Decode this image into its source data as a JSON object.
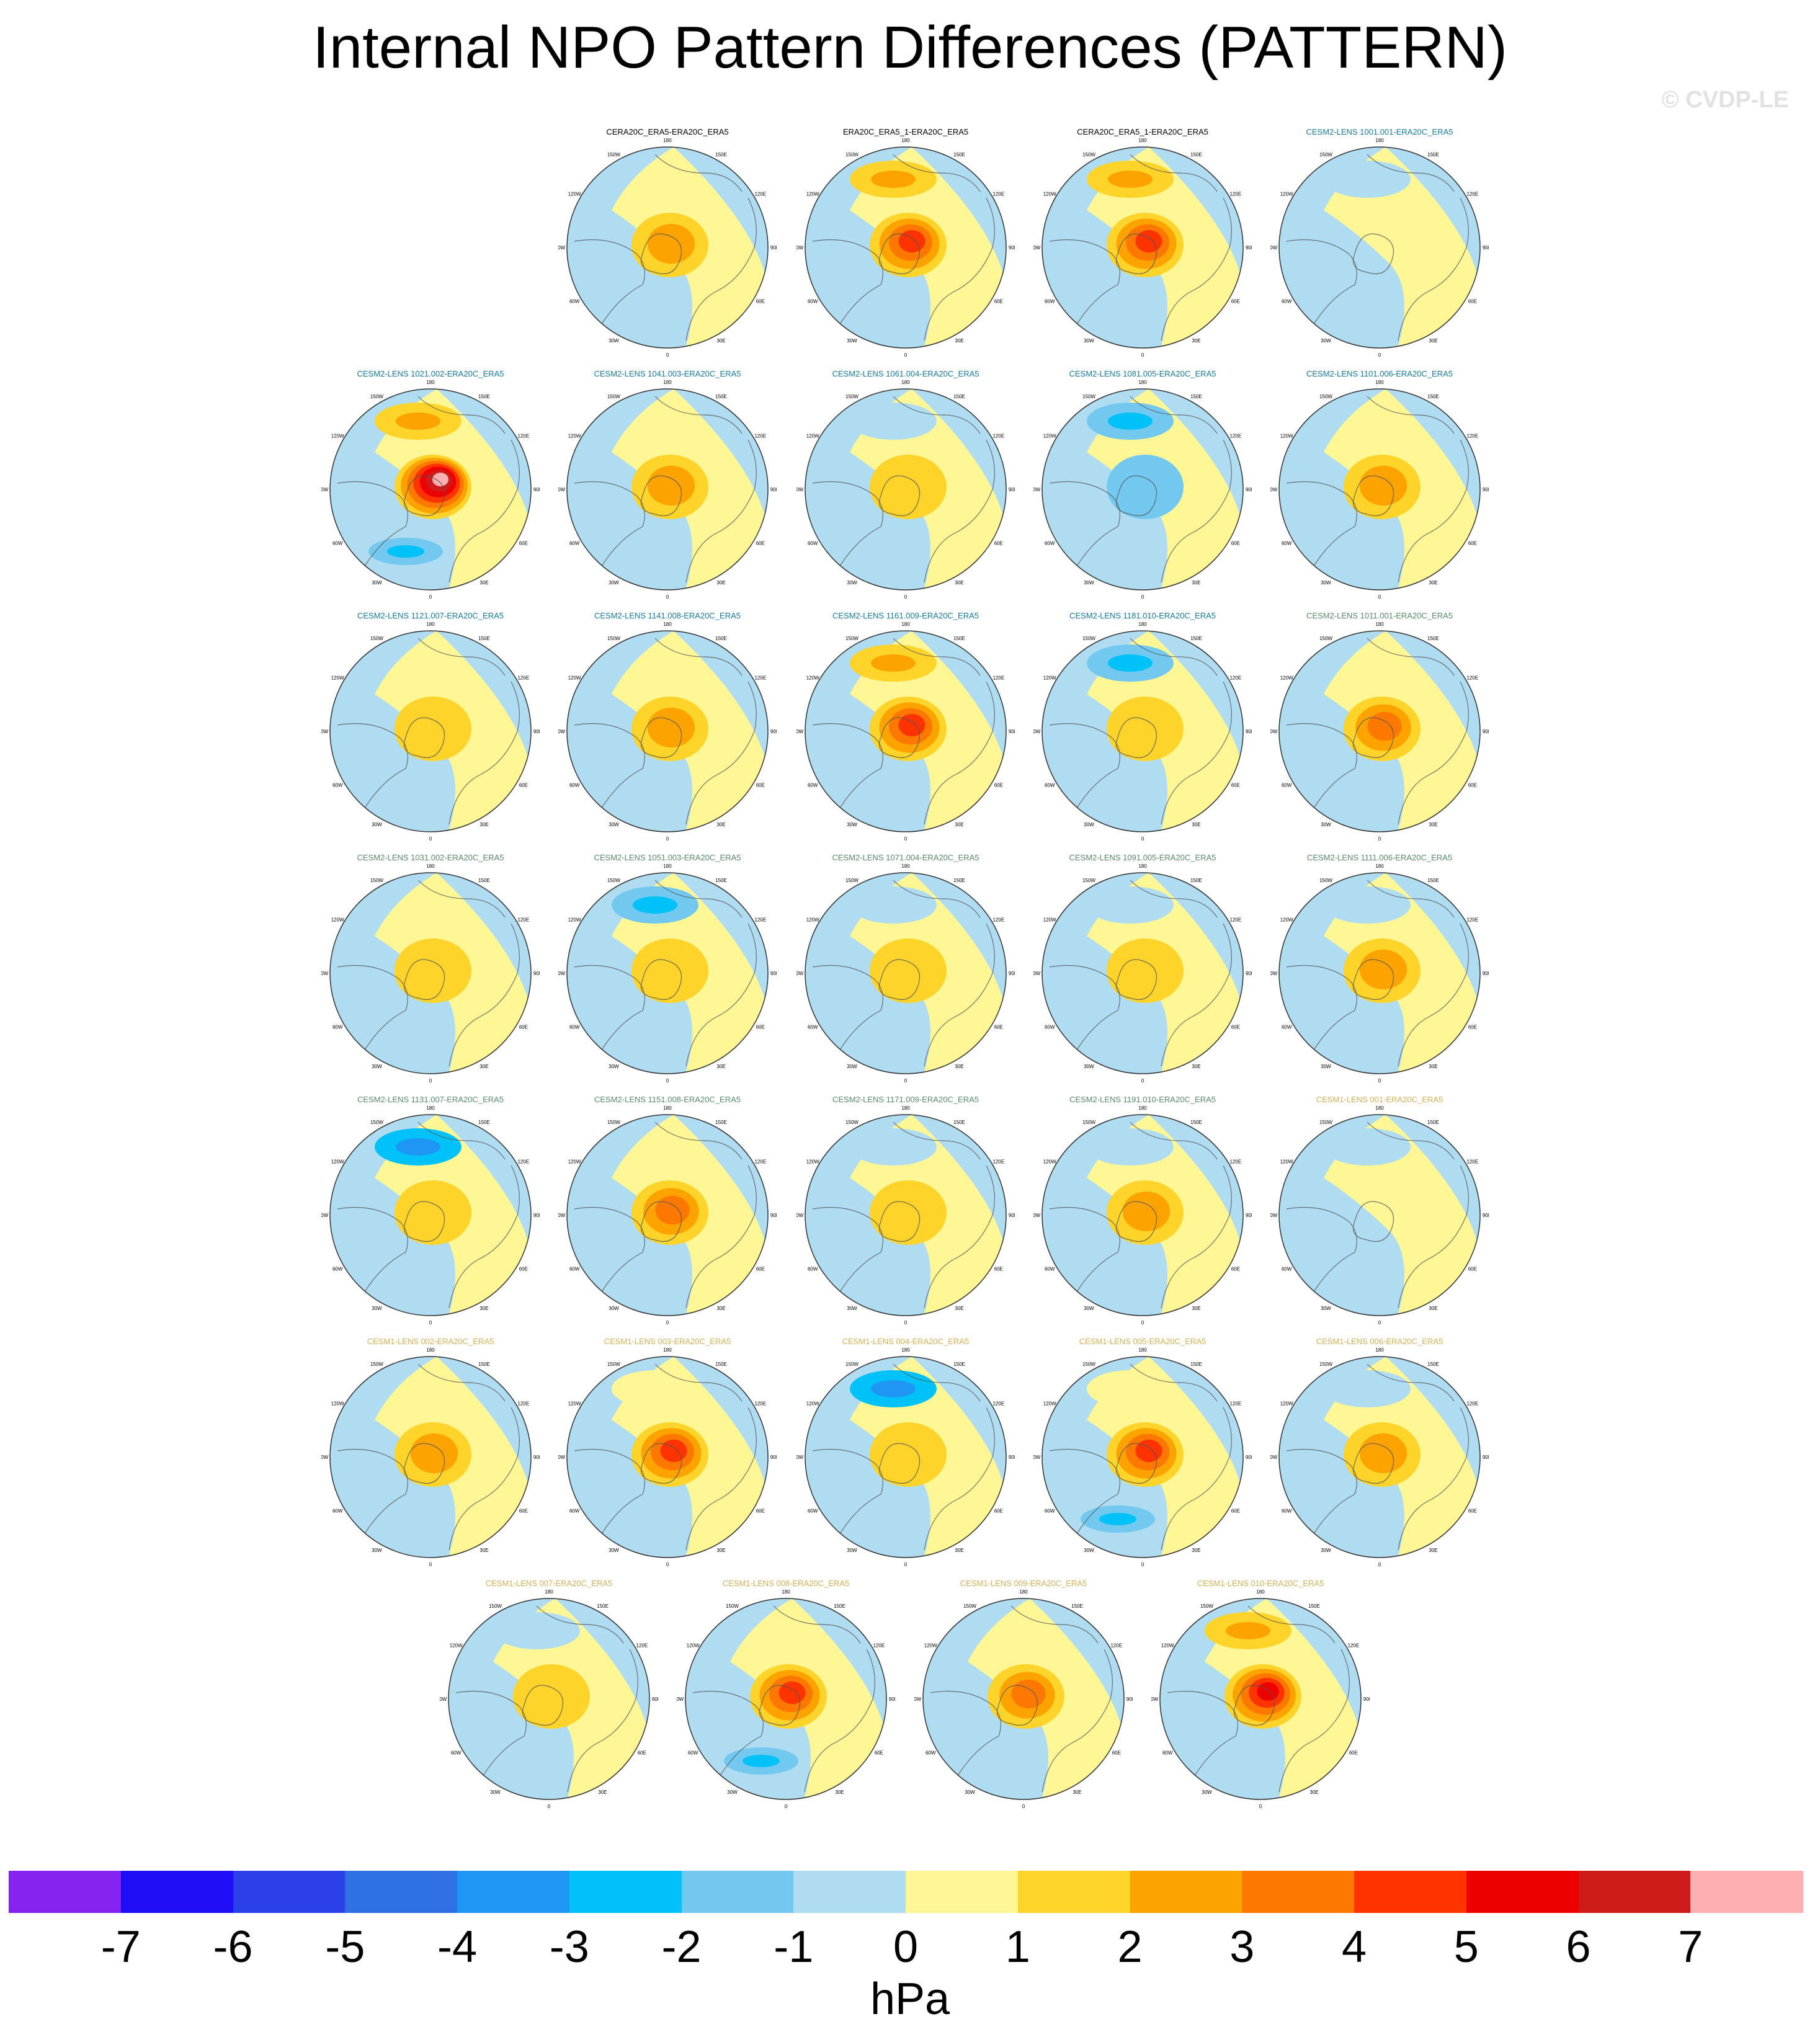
{
  "title": "Internal NPO Pattern Differences (PATTERN)",
  "credit": "© CVDP-LE",
  "map": {
    "projection": "north-polar-stereographic",
    "field": "NPO pattern difference",
    "lon_labels": {
      "top": "180",
      "upper_left": "150W",
      "upper_right": "150E",
      "left_upper": "120W",
      "right_upper": "120E",
      "left": "90W",
      "right": "90E",
      "left_lower": "60W",
      "right_lower": "60E",
      "lower_left": "30W",
      "lower_right": "30E",
      "bottom": "0"
    }
  },
  "panels": [
    {
      "title": "CERA20C_ERA5-ERA20C_ERA5",
      "title_color": "#000000",
      "center": 2,
      "pac": 0,
      "sub": -1,
      "atl": -1
    },
    {
      "title": "ERA20C_ERA5_1-ERA20C_ERA5",
      "title_color": "#000000",
      "center": 4,
      "pac": 2,
      "sub": -1,
      "atl": -1
    },
    {
      "title": "CERA20C_ERA5_1-ERA20C_ERA5",
      "title_color": "#000000",
      "center": 4,
      "pac": 2,
      "sub": -1,
      "atl": -1
    },
    {
      "title": "CESM2-LENS 1001.001-ERA20C_ERA5",
      "title_color": "#1a7a9a",
      "center": 0,
      "pac": -1,
      "sub": 0,
      "atl": 0
    },
    {
      "title": "CESM2-LENS 1021.002-ERA20C_ERA5",
      "title_color": "#1a7a9a",
      "center": 7,
      "pac": 2,
      "sub": -2,
      "atl": -1
    },
    {
      "title": "CESM2-LENS 1041.003-ERA20C_ERA5",
      "title_color": "#1a7a9a",
      "center": 2,
      "pac": 0,
      "sub": -1,
      "atl": -1
    },
    {
      "title": "CESM2-LENS 1061.004-ERA20C_ERA5",
      "title_color": "#1a7a9a",
      "center": 1,
      "pac": -1,
      "sub": 0,
      "atl": -1
    },
    {
      "title": "CESM2-LENS 1081.005-ERA20C_ERA5",
      "title_color": "#1a7a9a",
      "center": -1,
      "pac": -2,
      "sub": 0,
      "atl": -1
    },
    {
      "title": "CESM2-LENS 1101.006-ERA20C_ERA5",
      "title_color": "#1a7a9a",
      "center": 2,
      "pac": 0,
      "sub": -1,
      "atl": -1
    },
    {
      "title": "CESM2-LENS 1121.007-ERA20C_ERA5",
      "title_color": "#1a7a9a",
      "center": 1,
      "pac": 0,
      "sub": -1,
      "atl": -1
    },
    {
      "title": "CESM2-LENS 1141.008-ERA20C_ERA5",
      "title_color": "#1a7a9a",
      "center": 2,
      "pac": 0,
      "sub": -1,
      "atl": -1
    },
    {
      "title": "CESM2-LENS 1161.009-ERA20C_ERA5",
      "title_color": "#1a7a9a",
      "center": 4,
      "pac": 2,
      "sub": -1,
      "atl": -1
    },
    {
      "title": "CESM2-LENS 1181.010-ERA20C_ERA5",
      "title_color": "#1a7a9a",
      "center": 1,
      "pac": -2,
      "sub": -1,
      "atl": -1
    },
    {
      "title": "CESM2-LENS 1011.001-ERA20C_ERA5",
      "title_color": "#5a8a6a",
      "center": 3,
      "pac": 0,
      "sub": -1,
      "atl": -1
    },
    {
      "title": "CESM2-LENS 1031.002-ERA20C_ERA5",
      "title_color": "#5a8a6a",
      "center": 1,
      "pac": 0,
      "sub": -1,
      "atl": -1
    },
    {
      "title": "CESM2-LENS 1051.003-ERA20C_ERA5",
      "title_color": "#5a8a6a",
      "center": 1,
      "pac": -2,
      "sub": 0,
      "atl": -1
    },
    {
      "title": "CESM2-LENS 1071.004-ERA20C_ERA5",
      "title_color": "#5a8a6a",
      "center": 1,
      "pac": -1,
      "sub": -1,
      "atl": -1
    },
    {
      "title": "CESM2-LENS 1091.005-ERA20C_ERA5",
      "title_color": "#5a8a6a",
      "center": 1,
      "pac": -1,
      "sub": 0,
      "atl": -1
    },
    {
      "title": "CESM2-LENS 1111.006-ERA20C_ERA5",
      "title_color": "#5a8a6a",
      "center": 2,
      "pac": -1,
      "sub": -1,
      "atl": -1
    },
    {
      "title": "CESM2-LENS 1131.007-ERA20C_ERA5",
      "title_color": "#5a8a6a",
      "center": 1,
      "pac": -3,
      "sub": 0,
      "atl": -1
    },
    {
      "title": "CESM2-LENS 1151.008-ERA20C_ERA5",
      "title_color": "#5a8a6a",
      "center": 3,
      "pac": 0,
      "sub": -1,
      "atl": -1
    },
    {
      "title": "CESM2-LENS 1171.009-ERA20C_ERA5",
      "title_color": "#5a8a6a",
      "center": 1,
      "pac": -1,
      "sub": -1,
      "atl": -1
    },
    {
      "title": "CESM2-LENS 1191.010-ERA20C_ERA5",
      "title_color": "#5a8a6a",
      "center": 2,
      "pac": -1,
      "sub": -1,
      "atl": -1
    },
    {
      "title": "CESM1-LENS 001-ERA20C_ERA5",
      "title_color": "#d2b15a",
      "center": 0,
      "pac": -1,
      "sub": -1,
      "atl": 0
    },
    {
      "title": "CESM1-LENS 002-ERA20C_ERA5",
      "title_color": "#d2b15a",
      "center": 2,
      "pac": 0,
      "sub": -1,
      "atl": -1
    },
    {
      "title": "CESM1-LENS 003-ERA20C_ERA5",
      "title_color": "#d2b15a",
      "center": 4,
      "pac": 1,
      "sub": -1,
      "atl": -1
    },
    {
      "title": "CESM1-LENS 004-ERA20C_ERA5",
      "title_color": "#d2b15a",
      "center": 1,
      "pac": -3,
      "sub": 0,
      "atl": -1
    },
    {
      "title": "CESM1-LENS 005-ERA20C_ERA5",
      "title_color": "#d2b15a",
      "center": 4,
      "pac": 1,
      "sub": -2,
      "atl": -1
    },
    {
      "title": "CESM1-LENS 006-ERA20C_ERA5",
      "title_color": "#d2b15a",
      "center": 2,
      "pac": -1,
      "sub": -1,
      "atl": 0
    },
    {
      "title": "CESM1-LENS 007-ERA20C_ERA5",
      "title_color": "#d2b15a",
      "center": 1,
      "pac": -1,
      "sub": 0,
      "atl": -1
    },
    {
      "title": "CESM1-LENS 008-ERA20C_ERA5",
      "title_color": "#d2b15a",
      "center": 4,
      "pac": 0,
      "sub": -2,
      "atl": -1
    },
    {
      "title": "CESM1-LENS 009-ERA20C_ERA5",
      "title_color": "#d2b15a",
      "center": 3,
      "pac": 0,
      "sub": -1,
      "atl": -1
    },
    {
      "title": "CESM1-LENS 010-ERA20C_ERA5",
      "title_color": "#d2b15a",
      "center": 5,
      "pac": 2,
      "sub": -1,
      "atl": -1
    }
  ],
  "colorbar": {
    "label": "hPa",
    "ticks": [
      "-7",
      "-6",
      "-5",
      "-4",
      "-3",
      "-2",
      "-1",
      "0",
      "1",
      "2",
      "3",
      "4",
      "5",
      "6",
      "7"
    ],
    "colors": [
      "#8422f0",
      "#1e0df5",
      "#2b40e8",
      "#2f6fe4",
      "#1e96f4",
      "#00c2f8",
      "#72c8ef",
      "#b0dcf2",
      "#fff796",
      "#fed42a",
      "#fda300",
      "#fd7800",
      "#fe3300",
      "#ef0000",
      "#cf1a1a",
      "#fdb0b2"
    ]
  }
}
